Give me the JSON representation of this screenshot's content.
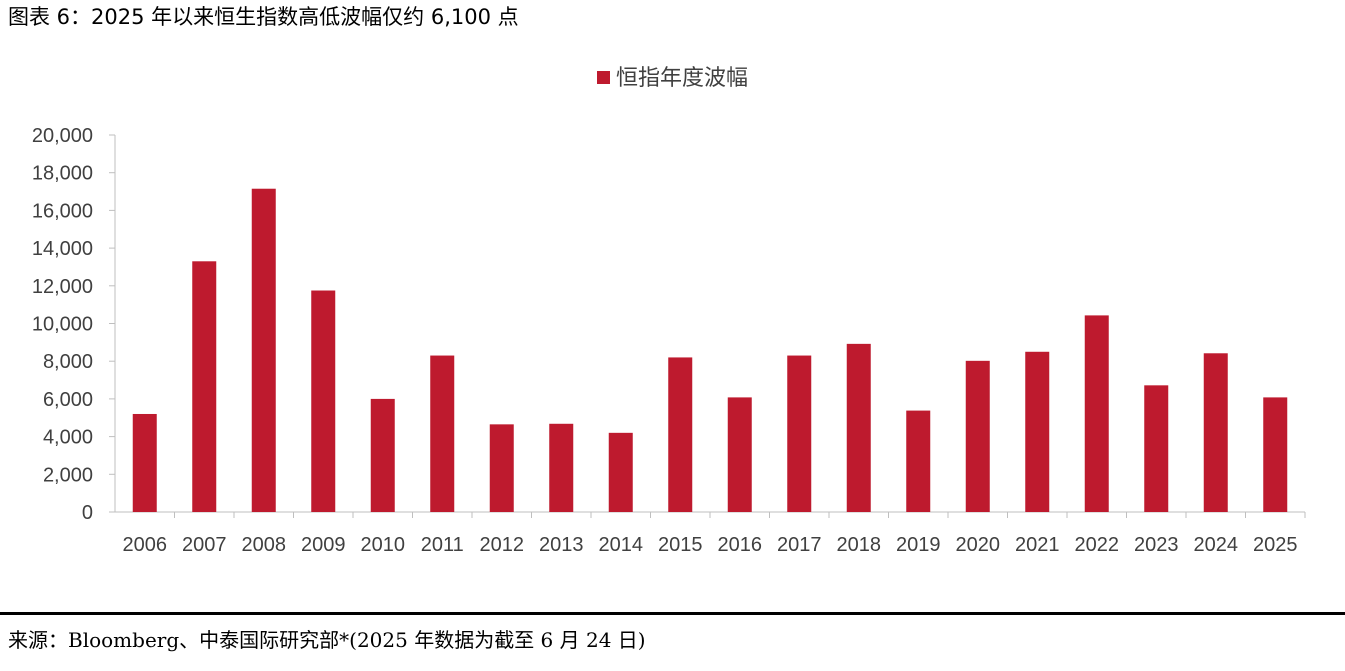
{
  "figure": {
    "title": "图表 6：2025 年以来恒生指数高低波幅仅约 6,100 点",
    "source": "来源：Bloomberg、中泰国际研究部*(2025 年数据为截至 6 月 24 日)"
  },
  "chart_data": {
    "type": "bar",
    "title": "",
    "xlabel": "",
    "ylabel": "",
    "categories": [
      "2006",
      "2007",
      "2008",
      "2009",
      "2010",
      "2011",
      "2012",
      "2013",
      "2014",
      "2015",
      "2016",
      "2017",
      "2018",
      "2019",
      "2020",
      "2021",
      "2022",
      "2023",
      "2024",
      "2025"
    ],
    "series": [
      {
        "name": "恒指年度波幅",
        "color": "#BE1A2E",
        "values": [
          5200,
          13300,
          17150,
          11750,
          6000,
          8300,
          4650,
          4680,
          4200,
          8200,
          6080,
          8300,
          8920,
          5380,
          8020,
          8500,
          10430,
          6720,
          8420,
          6080
        ]
      }
    ],
    "ylim": [
      0,
      20000
    ],
    "yticks": [
      "0",
      "2,000",
      "4,000",
      "6,000",
      "8,000",
      "10,000",
      "12,000",
      "14,000",
      "16,000",
      "18,000",
      "20,000"
    ],
    "ytick_values": [
      0,
      2000,
      4000,
      6000,
      8000,
      10000,
      12000,
      14000,
      16000,
      18000,
      20000
    ],
    "grid": false,
    "legend_position": "top-center"
  }
}
